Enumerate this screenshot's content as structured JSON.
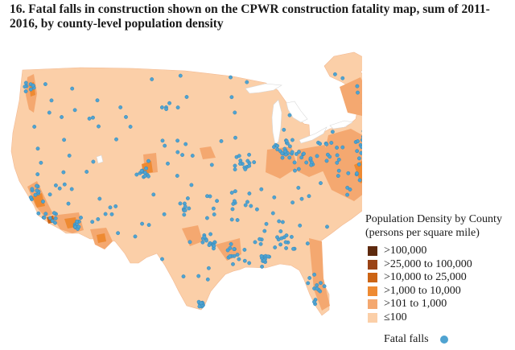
{
  "title": "16. Fatal falls in construction shown on the CPWR construction fatality map, sum of 2011-2016, by county-level population density",
  "legend": {
    "title_line1": "Population Density by County",
    "title_line2": "(persons per square mile)",
    "items": [
      {
        "label": ">100,000",
        "color": "#5e2a0e"
      },
      {
        "label": ">25,000 to 100,000",
        "color": "#9a4316"
      },
      {
        "label": ">10,000 to 25,000",
        "color": "#cc6414"
      },
      {
        "label": ">1,000 to 10,000",
        "color": "#ee8a32"
      },
      {
        "label": ">101 to 1,000",
        "color": "#f4a870"
      },
      {
        "label": "≤100",
        "color": "#fbcfa8"
      }
    ],
    "fatal_falls_label": "Fatal falls",
    "fatal_falls_color": "#4fa3d1"
  },
  "map": {
    "base_color": "#fbcfa8",
    "water_color": "#ffffff"
  }
}
